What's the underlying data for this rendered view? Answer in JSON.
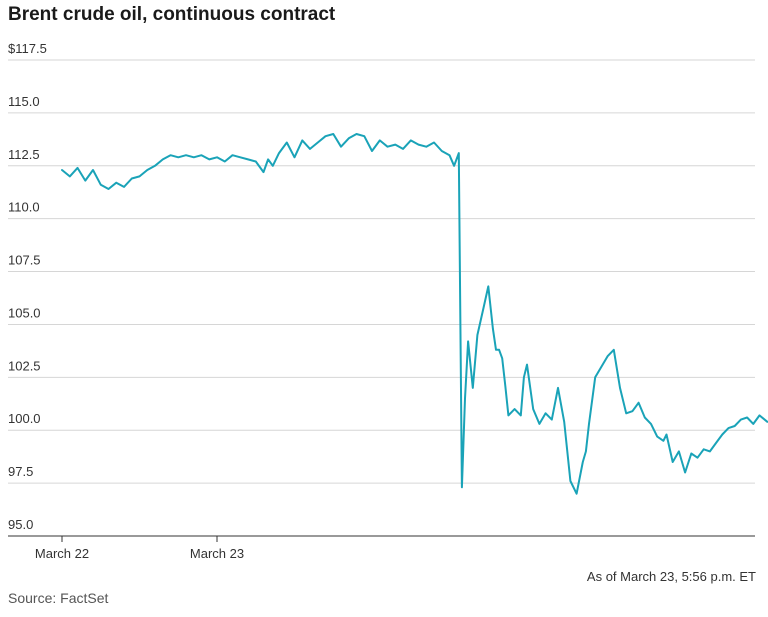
{
  "chart_data": {
    "type": "line",
    "title": "Brent crude oil, continuous contract",
    "y_tick_labels": [
      "$117.5",
      "115.0",
      "112.5",
      "110.0",
      "107.5",
      "105.0",
      "102.5",
      "100.0",
      "97.5",
      "95.0"
    ],
    "y_ticks": [
      117.5,
      115.0,
      112.5,
      110.0,
      107.5,
      105.0,
      102.5,
      100.0,
      97.5,
      95.0
    ],
    "ylim": [
      95.0,
      117.5
    ],
    "x_tick_labels": [
      "March 22",
      "March 23"
    ],
    "x_ticks": [
      0,
      1
    ],
    "xlim": [
      0,
      4.55
    ],
    "grid": "horizontal",
    "color": "#1aa3b8",
    "series": [
      {
        "x": [
          0.0,
          0.05,
          0.1,
          0.15,
          0.2,
          0.25,
          0.3,
          0.35,
          0.4,
          0.45,
          0.5,
          0.55,
          0.6,
          0.65,
          0.7,
          0.75,
          0.8,
          0.85,
          0.9,
          0.95,
          1.0,
          1.05,
          1.1,
          1.15,
          1.2,
          1.25,
          1.3,
          1.33,
          1.36,
          1.4,
          1.45,
          1.5,
          1.55,
          1.6,
          1.65,
          1.7,
          1.75,
          1.8,
          1.85,
          1.9,
          1.95,
          2.0,
          2.05,
          2.1,
          2.15,
          2.2,
          2.25,
          2.3,
          2.35,
          2.4,
          2.45,
          2.5,
          2.53,
          2.56,
          2.58,
          2.6,
          2.62,
          2.65,
          2.68,
          2.72,
          2.75,
          2.78,
          2.8,
          2.82,
          2.84,
          2.86,
          2.88,
          2.92,
          2.96,
          2.98,
          3.0,
          3.04,
          3.08,
          3.12,
          3.16,
          3.2,
          3.24,
          3.28,
          3.32,
          3.36,
          3.38,
          3.4,
          3.44,
          3.48,
          3.52,
          3.56,
          3.6,
          3.64,
          3.68,
          3.72,
          3.76,
          3.8,
          3.84,
          3.88,
          3.9,
          3.94,
          3.98,
          4.02,
          4.06,
          4.1,
          4.14,
          4.18,
          4.22,
          4.26,
          4.3,
          4.34,
          4.38,
          4.42,
          4.46,
          4.5,
          4.55
        ],
        "y": [
          112.3,
          112.0,
          112.4,
          111.8,
          112.3,
          111.6,
          111.4,
          111.7,
          111.5,
          111.9,
          112.0,
          112.3,
          112.5,
          112.8,
          113.0,
          112.9,
          113.0,
          112.9,
          113.0,
          112.8,
          112.9,
          112.7,
          113.0,
          112.9,
          112.8,
          112.7,
          112.2,
          112.8,
          112.5,
          113.1,
          113.6,
          112.9,
          113.7,
          113.3,
          113.6,
          113.9,
          114.0,
          113.4,
          113.8,
          114.0,
          113.9,
          113.2,
          113.7,
          113.4,
          113.5,
          113.3,
          113.7,
          113.5,
          113.4,
          113.6,
          113.2,
          113.0,
          112.5,
          113.1,
          97.3,
          101.5,
          104.2,
          102.0,
          104.5,
          105.8,
          106.8,
          104.8,
          103.8,
          103.8,
          103.4,
          102.1,
          100.7,
          101.0,
          100.7,
          102.5,
          103.1,
          101.0,
          100.3,
          100.8,
          100.5,
          102.0,
          100.4,
          97.6,
          97.0,
          98.5,
          99.0,
          100.3,
          102.5,
          103.0,
          103.5,
          103.8,
          102.0,
          100.8,
          100.9,
          101.3,
          100.6,
          100.3,
          99.7,
          99.5,
          99.8,
          98.5,
          99.0,
          98.0,
          98.9,
          98.7,
          99.1,
          99.0,
          99.4,
          99.8,
          100.1,
          100.2,
          100.5,
          100.6,
          100.3,
          100.7,
          100.4
        ]
      }
    ]
  },
  "footer": {
    "as_of": "As of March 23, 5:56 p.m. ET",
    "source": "Source: FactSet"
  }
}
